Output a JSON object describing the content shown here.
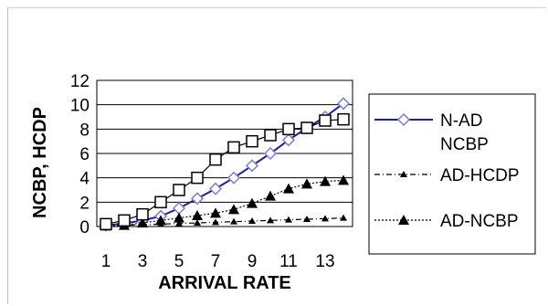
{
  "chart_data": {
    "type": "line",
    "title": "",
    "xlabel": "ARRIVAL RATE",
    "ylabel": "NCBP, HCDP",
    "x": [
      1,
      2,
      3,
      4,
      5,
      6,
      7,
      8,
      9,
      10,
      11,
      12,
      13,
      14
    ],
    "x_tick_labels": [
      "1",
      "3",
      "5",
      "7",
      "9",
      "11",
      "13"
    ],
    "x_tick_values": [
      1,
      3,
      5,
      7,
      9,
      11,
      13
    ],
    "y_tick_labels": [
      "0",
      "2",
      "4",
      "6",
      "8",
      "10",
      "12"
    ],
    "y_tick_values": [
      0,
      2,
      4,
      6,
      8,
      10,
      12
    ],
    "xlim": [
      0.5,
      14.5
    ],
    "ylim": [
      0,
      12
    ],
    "grid": true,
    "legend_position": "right",
    "series": [
      {
        "name": "N-AD NCBP",
        "legend_lines": [
          "N-AD",
          "NCBP"
        ],
        "color": "#1f1f8f",
        "marker": "diamond",
        "line_style": "solid",
        "values": [
          0.1,
          0.25,
          0.5,
          0.85,
          1.5,
          2.3,
          3.1,
          4.0,
          5.0,
          6.0,
          7.1,
          8.1,
          9.0,
          10.1
        ]
      },
      {
        "name": "AD-HCDP",
        "legend_lines": [
          "AD-HCDP"
        ],
        "color": "#000000",
        "marker": "triangle-small",
        "line_style": "dash-dot",
        "values": [
          0.05,
          0.1,
          0.15,
          0.2,
          0.25,
          0.3,
          0.35,
          0.4,
          0.45,
          0.5,
          0.55,
          0.6,
          0.65,
          0.7
        ]
      },
      {
        "name": "AD-NCBP",
        "legend_lines": [
          "AD-NCBP"
        ],
        "color": "#000000",
        "marker": "triangle",
        "line_style": "dotted",
        "values": [
          0.05,
          0.1,
          0.3,
          0.5,
          0.7,
          0.9,
          1.1,
          1.4,
          1.9,
          2.5,
          3.1,
          3.5,
          3.7,
          3.8
        ]
      },
      {
        "name": "",
        "legend_lines": [],
        "color": "#000000",
        "marker": "square",
        "line_style": "solid",
        "values": [
          0.2,
          0.5,
          1.0,
          2.0,
          3.0,
          4.0,
          5.5,
          6.5,
          7.0,
          7.5,
          8.0,
          8.1,
          8.7,
          8.8
        ]
      }
    ]
  }
}
